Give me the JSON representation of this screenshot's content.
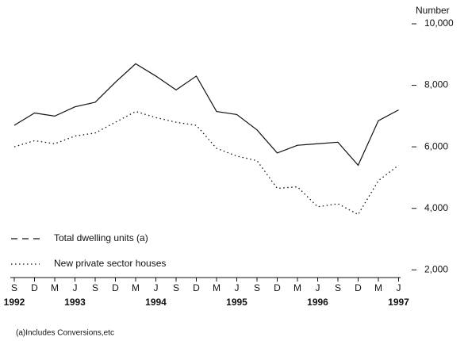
{
  "chart_data": {
    "type": "line",
    "y_axis_label": "Number",
    "footnote": "(a)Includes Conversions,etc",
    "categories": [
      "S",
      "D",
      "M",
      "J",
      "S",
      "D",
      "M",
      "J",
      "S",
      "D",
      "M",
      "J",
      "S",
      "D",
      "M",
      "J",
      "S",
      "D",
      "M",
      "J"
    ],
    "x_years": [
      "1992",
      null,
      null,
      "1993",
      null,
      null,
      null,
      "1994",
      null,
      null,
      null,
      "1995",
      null,
      null,
      null,
      "1996",
      null,
      null,
      null,
      "1997"
    ],
    "series": [
      {
        "name": "Total dwelling units (a)",
        "color": "#111111",
        "dash": "solid",
        "values": [
          6700,
          7100,
          7000,
          7300,
          7450,
          8100,
          8700,
          8300,
          7850,
          8300,
          7150,
          7050,
          6550,
          5800,
          6050,
          6100,
          6150,
          5400,
          6850,
          7200
        ]
      },
      {
        "name": "New private sector houses",
        "color": "#111111",
        "dash": "dotted",
        "values": [
          6000,
          6200,
          6100,
          6350,
          6450,
          6800,
          7150,
          6950,
          6800,
          6700,
          5950,
          5700,
          5550,
          4650,
          4700,
          4050,
          4150,
          3800,
          4900,
          5400
        ]
      }
    ],
    "ylim": [
      1750,
      10000
    ],
    "yticks": [
      {
        "value": 2000,
        "label": "2,000"
      },
      {
        "value": 4000,
        "label": "4,000"
      },
      {
        "value": 6000,
        "label": "6,000"
      },
      {
        "value": 8000,
        "label": "8,000"
      },
      {
        "value": 10000,
        "label": "10,000"
      }
    ],
    "grid": false,
    "legend": "left"
  }
}
